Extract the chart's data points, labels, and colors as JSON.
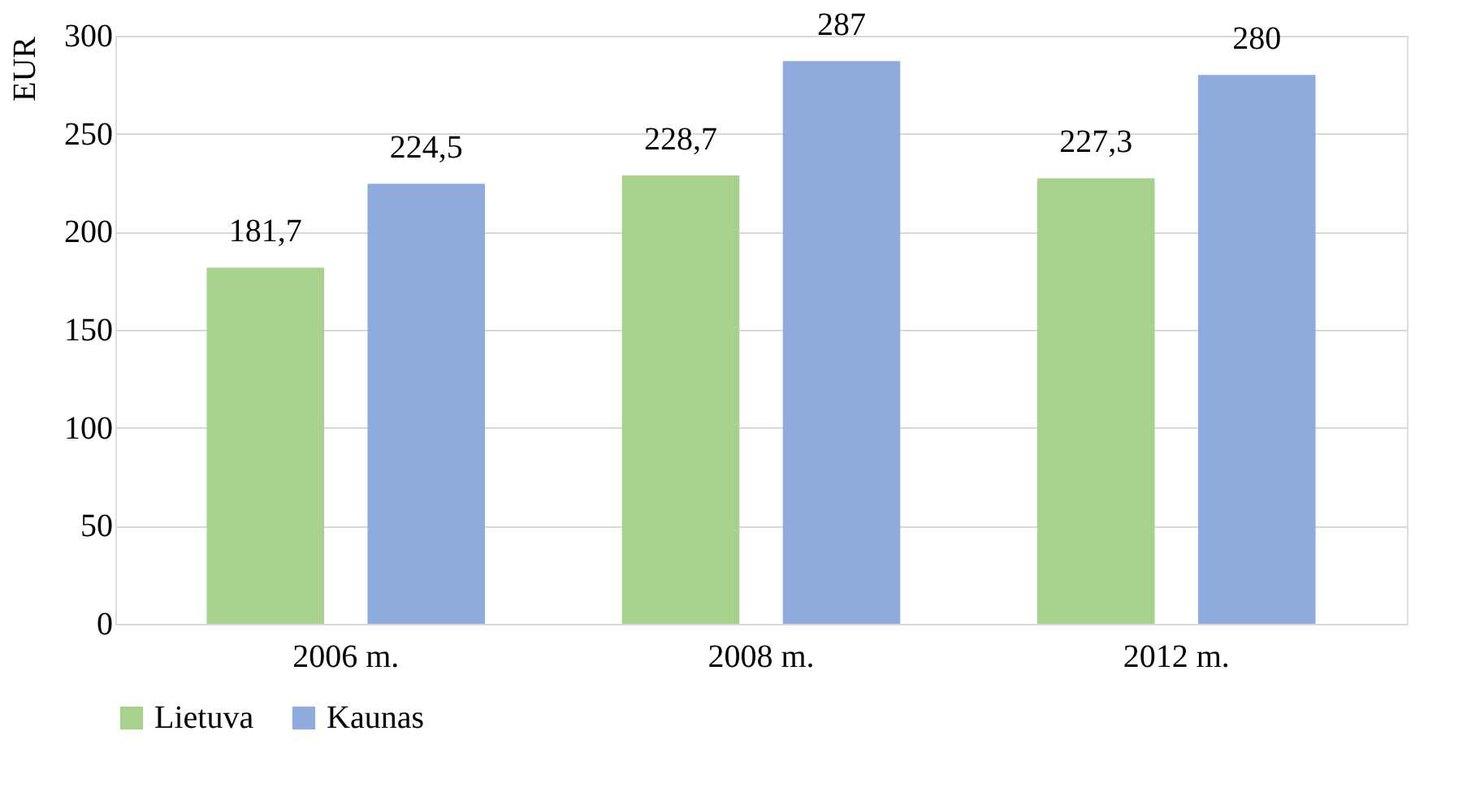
{
  "chart_data": {
    "type": "bar",
    "ylabel": "EUR",
    "categories": [
      "2006 m.",
      "2008 m.",
      "2012 m."
    ],
    "series": [
      {
        "name": "Lietuva",
        "color": "#a9d18e",
        "values": [
          181.7,
          228.7,
          227.3
        ],
        "value_labels": [
          "181,7",
          "228,7",
          "227,3"
        ]
      },
      {
        "name": "Kaunas",
        "color": "#8faadc",
        "values": [
          224.5,
          287,
          280
        ],
        "value_labels": [
          "224,5",
          "287",
          "280"
        ]
      }
    ],
    "ylim": [
      0,
      300
    ],
    "yticks": [
      0,
      50,
      100,
      150,
      200,
      250,
      300
    ],
    "grid": "y",
    "legend": "bottom"
  }
}
